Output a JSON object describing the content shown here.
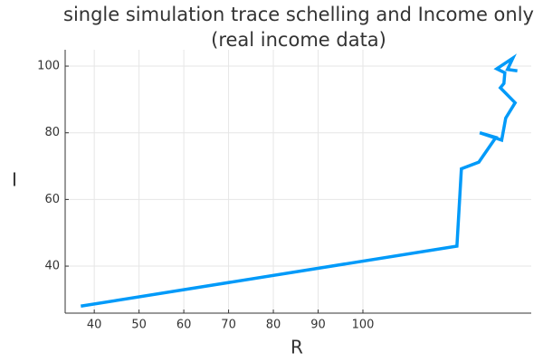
{
  "chart_data": {
    "type": "line",
    "title": [
      "single simulation trace schelling and Income only",
      "(real income data)"
    ],
    "x_label": "R",
    "y_label": "I",
    "x": [
      37.0,
      121.0,
      122.0,
      125.9,
      129.7,
      126.1,
      131.0,
      131.9,
      134.0,
      130.7,
      131.5,
      131.7,
      129.9,
      133.5,
      132.3,
      134.5
    ],
    "series": [
      {
        "name": "y1",
        "color": "#009af9",
        "values": [
          28.0,
          46.0,
          69.2,
          71.2,
          78.6,
          80.0,
          77.8,
          84.4,
          89.0,
          93.5,
          94.8,
          98.0,
          99.2,
          102.4,
          99.0,
          98.6
        ]
      }
    ],
    "xlim": [
      33.5,
      137.6
    ],
    "ylim": [
      25.9,
      104.9
    ],
    "xticks": [
      40,
      50,
      60,
      70,
      80,
      90,
      100
    ],
    "yticks": [
      40,
      60,
      80,
      100
    ],
    "grid": true
  }
}
